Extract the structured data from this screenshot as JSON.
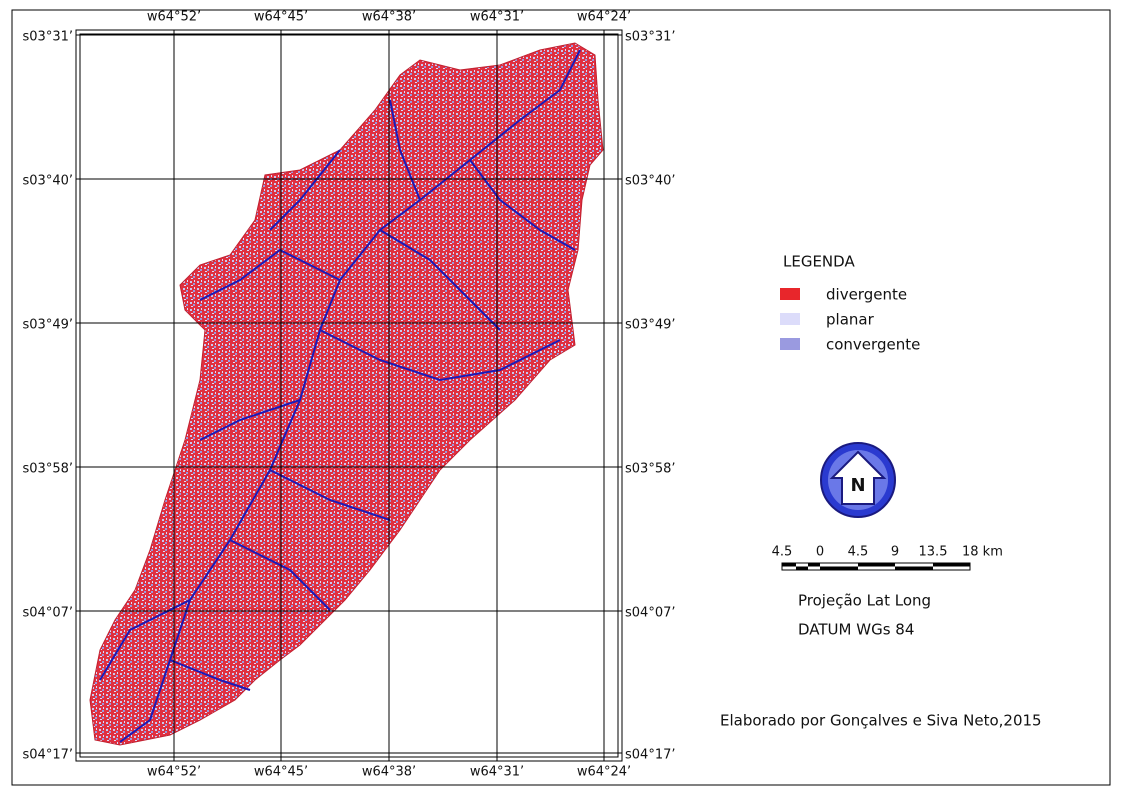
{
  "map": {
    "longitude_labels": [
      "w64°52’",
      "w64°45’",
      "w64°38’",
      "w64°31’",
      "w64°24’"
    ],
    "latitude_labels": [
      "s03°31’",
      "s03°40’",
      "s03°49’",
      "s03°58’",
      "s04°07’",
      "s04°17’"
    ]
  },
  "legend": {
    "title": "LEGENDA",
    "items": [
      {
        "label": "divergente",
        "color": "#e8262b"
      },
      {
        "label": "planar",
        "color": "#dcdcfa"
      },
      {
        "label": "convergente",
        "color": "#9a9ae0"
      }
    ]
  },
  "north_arrow": {
    "label": "N"
  },
  "scale_bar": {
    "labels": [
      "4.5",
      "0",
      "4.5",
      "9",
      "13.5",
      "18 km"
    ]
  },
  "projection": "Projeção Lat Long",
  "datum": "DATUM WGs 84",
  "credit": "Elaborado por Gonçalves e Siva Neto,2015"
}
